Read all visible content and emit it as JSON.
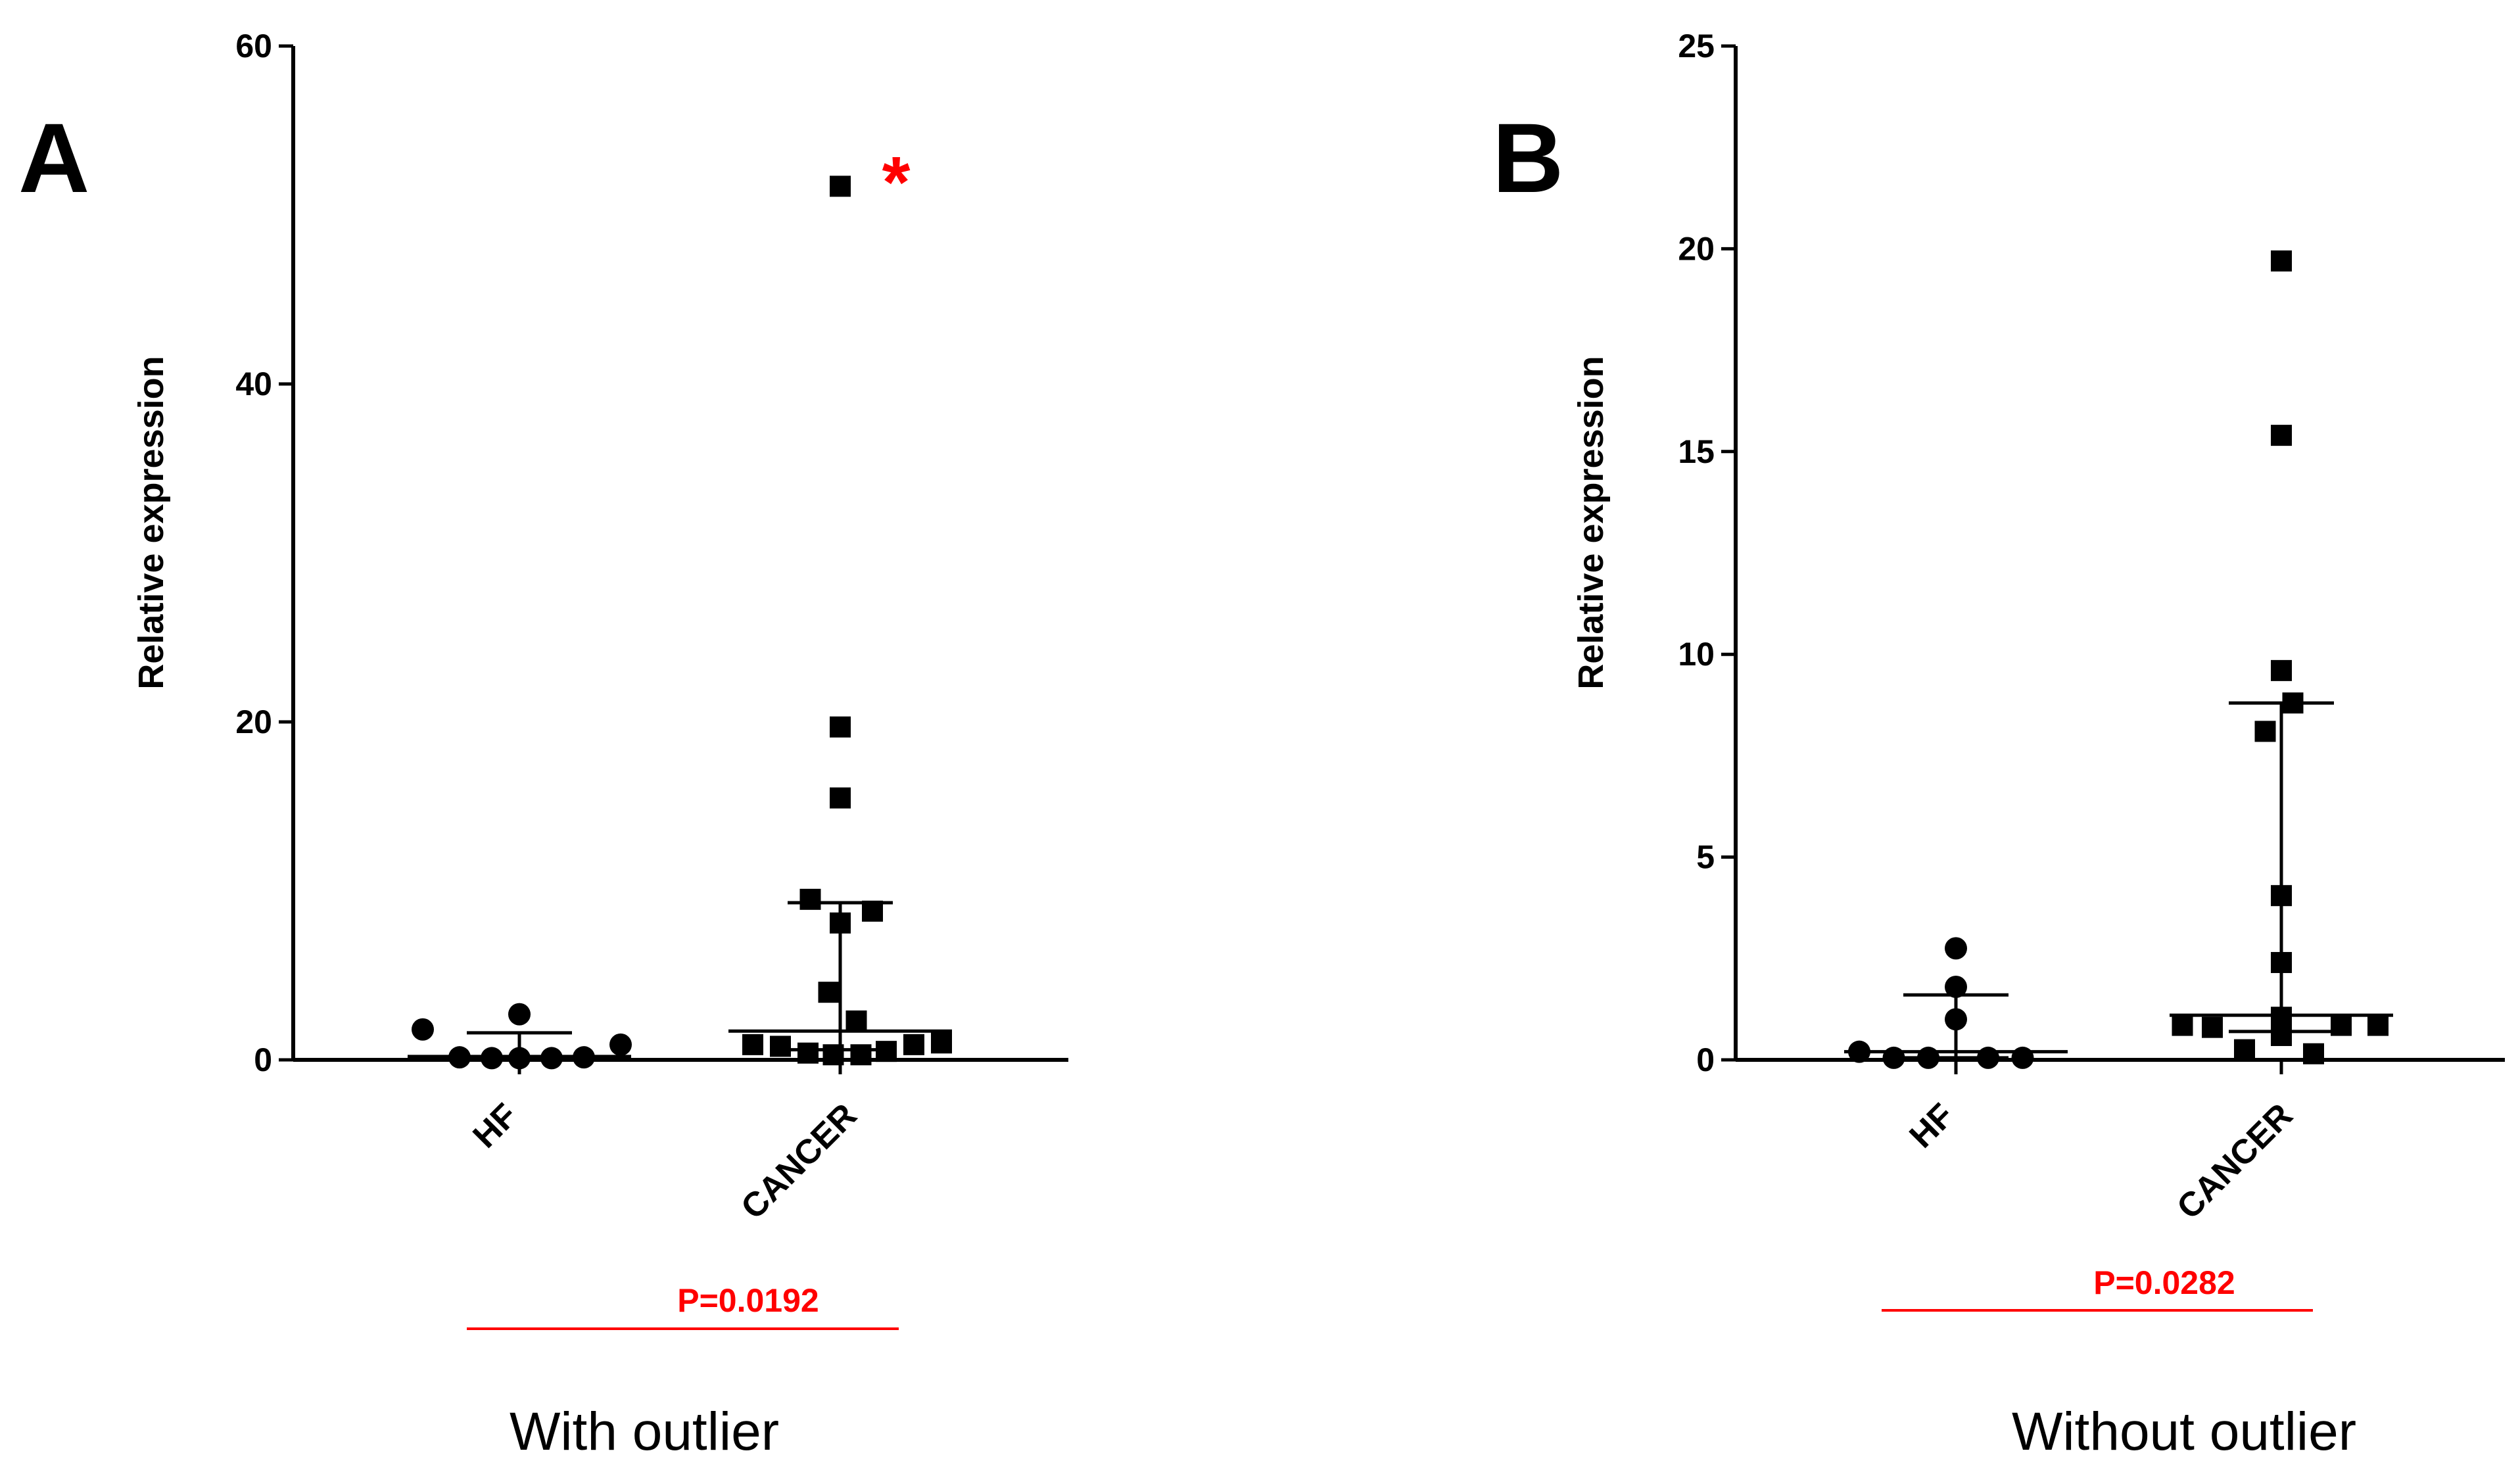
{
  "colors": {
    "marker": "#000000",
    "axis": "#000000",
    "annotation": "#ff0000"
  },
  "chart_data": [
    {
      "type": "scatter",
      "panel": "A",
      "caption": "With outlier",
      "ylabel": "Relative expression",
      "ylim": [
        0,
        60
      ],
      "yticks": [
        "0",
        "20",
        "40",
        "60"
      ],
      "categories": [
        "HF",
        "CANCER"
      ],
      "pvalue": "P=0.0192",
      "outlier_mark": "*",
      "series": [
        {
          "name": "HF",
          "marker": "circle",
          "points": [
            {
              "x": -0.42,
              "y": 1.8
            },
            {
              "x": -0.26,
              "y": 0.15
            },
            {
              "x": -0.12,
              "y": 0.1
            },
            {
              "x": 0.0,
              "y": 2.7
            },
            {
              "x": 0.0,
              "y": 0.1
            },
            {
              "x": 0.14,
              "y": 0.1
            },
            {
              "x": 0.28,
              "y": 0.15
            },
            {
              "x": 0.44,
              "y": 0.9
            }
          ],
          "median": 0.2,
          "iqr": [
            0.1,
            1.6
          ]
        },
        {
          "name": "CANCER",
          "marker": "square",
          "points": [
            {
              "x": 0.0,
              "y": 51.7
            },
            {
              "x": 0.0,
              "y": 19.7
            },
            {
              "x": 0.0,
              "y": 15.5
            },
            {
              "x": -0.13,
              "y": 9.5
            },
            {
              "x": 0.14,
              "y": 8.8
            },
            {
              "x": 0.0,
              "y": 8.1
            },
            {
              "x": -0.05,
              "y": 4.0
            },
            {
              "x": 0.07,
              "y": 2.3
            },
            {
              "x": -0.38,
              "y": 0.9
            },
            {
              "x": -0.26,
              "y": 0.8
            },
            {
              "x": -0.14,
              "y": 0.4
            },
            {
              "x": -0.03,
              "y": 0.3
            },
            {
              "x": 0.09,
              "y": 0.3
            },
            {
              "x": 0.2,
              "y": 0.5
            },
            {
              "x": 0.32,
              "y": 0.9
            },
            {
              "x": 0.44,
              "y": 1.0
            }
          ],
          "median": 1.7,
          "iqr": [
            0.6,
            9.3
          ]
        }
      ]
    },
    {
      "type": "scatter",
      "panel": "B",
      "caption": "Without outlier",
      "ylabel": "Relative expression",
      "ylim": [
        0,
        25
      ],
      "yticks": [
        "0",
        "5",
        "10",
        "15",
        "20",
        "25"
      ],
      "categories": [
        "HF",
        "CANCER"
      ],
      "pvalue": "P=0.0282",
      "series": [
        {
          "name": "HF",
          "marker": "circle",
          "points": [
            {
              "x": -0.42,
              "y": 0.2
            },
            {
              "x": -0.27,
              "y": 0.05
            },
            {
              "x": -0.12,
              "y": 0.05
            },
            {
              "x": 0.0,
              "y": 2.75
            },
            {
              "x": 0.0,
              "y": 1.8
            },
            {
              "x": 0.0,
              "y": 1.0
            },
            {
              "x": 0.14,
              "y": 0.05
            },
            {
              "x": 0.29,
              "y": 0.05
            }
          ],
          "median": 0.2,
          "iqr": [
            0.05,
            1.6
          ]
        },
        {
          "name": "CANCER",
          "marker": "square",
          "points": [
            {
              "x": 0.0,
              "y": 19.7
            },
            {
              "x": 0.0,
              "y": 15.4
            },
            {
              "x": 0.0,
              "y": 9.6
            },
            {
              "x": 0.05,
              "y": 8.8
            },
            {
              "x": -0.07,
              "y": 8.1
            },
            {
              "x": 0.0,
              "y": 4.05
            },
            {
              "x": 0.0,
              "y": 2.4
            },
            {
              "x": 0.0,
              "y": 1.05
            },
            {
              "x": -0.43,
              "y": 0.85
            },
            {
              "x": -0.3,
              "y": 0.8
            },
            {
              "x": -0.16,
              "y": 0.25
            },
            {
              "x": 0.0,
              "y": 0.6
            },
            {
              "x": 0.14,
              "y": 0.15
            },
            {
              "x": 0.26,
              "y": 0.85
            },
            {
              "x": 0.42,
              "y": 0.85
            }
          ],
          "median": 1.1,
          "iqr": [
            0.7,
            8.8
          ]
        }
      ]
    }
  ]
}
